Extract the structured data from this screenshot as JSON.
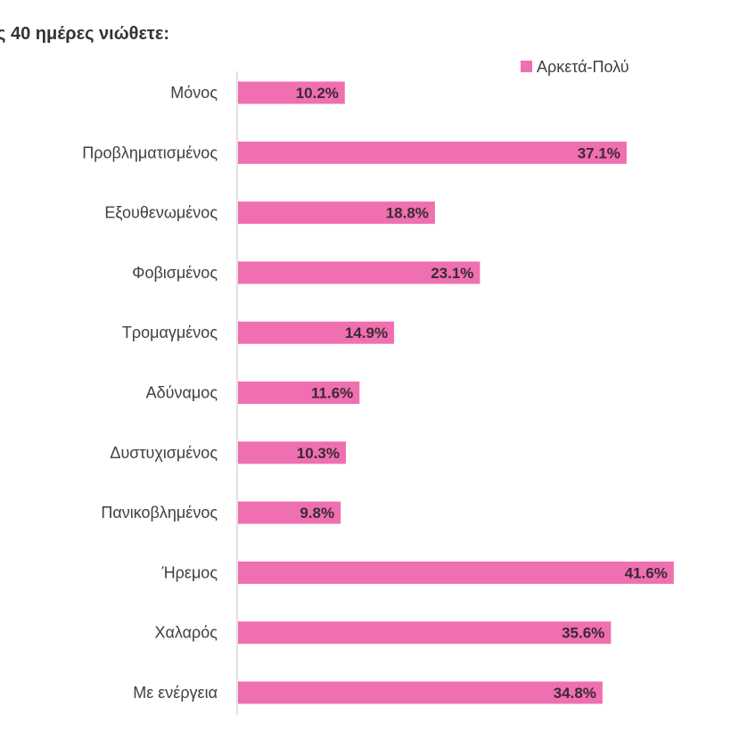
{
  "chart_data": {
    "type": "bar",
    "orientation": "horizontal",
    "title": "ς 40 ημέρες νιώθετε:",
    "categories": [
      "Μόνος",
      "Προβληματισμένος",
      "Εξουθενωμένος",
      "Φοβισμένος",
      "Τρομαγμένος",
      "Αδύναμος",
      "Δυστυχισμένος",
      "Πανικοβλημένος",
      "Ήρεμος",
      "Χαλαρός",
      "Με ενέργεια"
    ],
    "series": [
      {
        "name": "Αρκετά-Πολύ",
        "values": [
          10.2,
          37.1,
          18.8,
          23.1,
          14.9,
          11.6,
          10.3,
          9.8,
          41.6,
          35.6,
          34.8
        ],
        "labels": [
          "10.2%",
          "37.1%",
          "18.8%",
          "23.1%",
          "14.9%",
          "11.6%",
          "10.3%",
          "9.8%",
          "41.6%",
          "35.6%",
          "34.8%"
        ]
      }
    ],
    "xlim": [
      0,
      45
    ],
    "grid": false,
    "legend_position": "top-right",
    "colors": {
      "bar": "#f06fb0",
      "axis": "#d9d9d9"
    }
  }
}
